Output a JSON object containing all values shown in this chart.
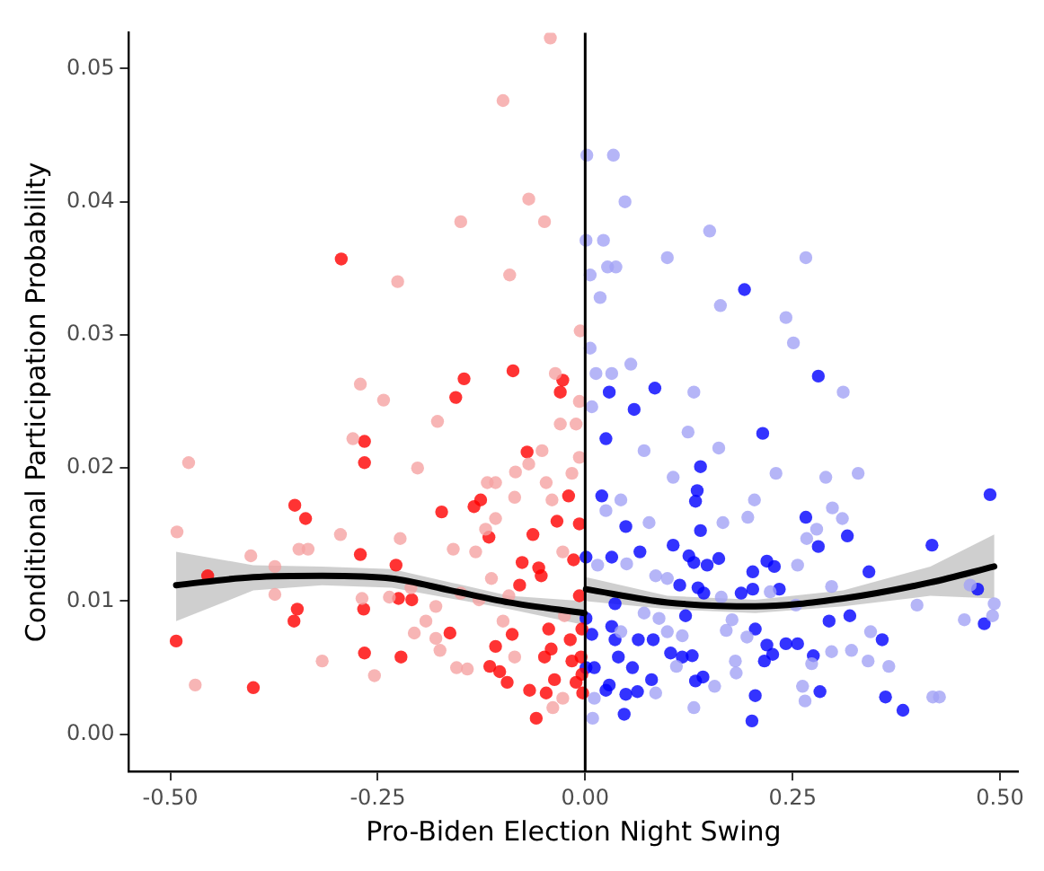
{
  "chart_data": {
    "type": "scatter",
    "xlabel": "Pro-Biden Election Night Swing",
    "ylabel": "Conditional Participation Probability",
    "xlim": [
      -0.55,
      0.522
    ],
    "ylim": [
      -0.0028,
      0.0527
    ],
    "xticks": [
      {
        "value": -0.5,
        "label": "-0.50"
      },
      {
        "value": -0.25,
        "label": "-0.25"
      },
      {
        "value": 0,
        "label": "0.00"
      },
      {
        "value": 0.25,
        "label": "0.25"
      },
      {
        "value": 0.5,
        "label": "0.50"
      }
    ],
    "yticks": [
      {
        "value": 0,
        "label": "0.00"
      },
      {
        "value": 0.01,
        "label": "0.01"
      },
      {
        "value": 0.02,
        "label": "0.02"
      },
      {
        "value": 0.03,
        "label": "0.03"
      },
      {
        "value": 0.04,
        "label": "0.04"
      },
      {
        "value": 0.05,
        "label": "0.05"
      }
    ],
    "marker": "circle",
    "legend": false,
    "grid": false,
    "ref_lines": [
      {
        "axis": "x",
        "value": 0,
        "color": "#000000"
      }
    ],
    "series": [
      {
        "color": "#f5a3a3",
        "x": [
          -0.099,
          -0.042,
          -0.068,
          -0.15,
          -0.049,
          -0.226,
          -0.091,
          -0.006,
          -0.271,
          -0.243,
          -0.036,
          -0.478,
          -0.492,
          -0.47,
          -0.403,
          -0.374,
          -0.374,
          -0.345,
          -0.334,
          -0.317,
          -0.295,
          -0.28,
          -0.269,
          -0.254,
          -0.223,
          -0.236,
          -0.202,
          -0.21,
          -0.178,
          -0.192,
          -0.206,
          -0.18,
          -0.175,
          -0.18,
          -0.159,
          -0.15,
          -0.155,
          -0.142,
          -0.132,
          -0.12,
          -0.108,
          -0.118,
          -0.108,
          -0.085,
          -0.084,
          -0.068,
          -0.052,
          -0.03,
          -0.047,
          -0.04,
          -0.016,
          -0.113,
          -0.128,
          -0.099,
          -0.039,
          -0.027,
          -0.025,
          -0.027,
          -0.007,
          -0.011,
          -0.007,
          -0.092,
          -0.085
        ],
        "values": [
          0.0476,
          0.0523,
          0.0402,
          0.0385,
          0.0385,
          0.034,
          0.0345,
          0.0303,
          0.0263,
          0.0251,
          0.0271,
          0.0204,
          0.0152,
          0.0037,
          0.0134,
          0.0126,
          0.0105,
          0.0139,
          0.0139,
          0.0055,
          0.015,
          0.0222,
          0.0102,
          0.0044,
          0.0147,
          0.0103,
          0.02,
          0.011,
          0.0235,
          0.0085,
          0.0076,
          0.0072,
          0.0063,
          0.0096,
          0.0139,
          0.0106,
          0.005,
          0.0049,
          0.0137,
          0.0154,
          0.0162,
          0.0189,
          0.0189,
          0.0178,
          0.0197,
          0.0203,
          0.0213,
          0.0233,
          0.0189,
          0.0176,
          0.0196,
          0.0117,
          0.0101,
          0.0085,
          0.002,
          0.0027,
          0.0089,
          0.0137,
          0.0208,
          0.0233,
          0.025,
          0.0104,
          0.0058
        ]
      },
      {
        "color": "#ff0000",
        "x": [
          -0.294,
          -0.146,
          -0.087,
          -0.027,
          -0.03,
          -0.156,
          -0.493,
          -0.455,
          -0.4,
          -0.35,
          -0.337,
          -0.347,
          -0.351,
          -0.266,
          -0.266,
          -0.271,
          -0.267,
          -0.266,
          -0.228,
          -0.225,
          -0.209,
          -0.222,
          -0.173,
          -0.163,
          -0.134,
          -0.126,
          -0.116,
          -0.07,
          -0.02,
          -0.034,
          -0.063,
          -0.076,
          -0.053,
          -0.079,
          -0.088,
          -0.108,
          -0.115,
          -0.103,
          -0.094,
          -0.067,
          -0.059,
          -0.044,
          -0.049,
          -0.041,
          -0.037,
          -0.047,
          -0.018,
          -0.016,
          -0.011,
          -0.007,
          -0.014,
          -0.007,
          -0.004,
          -0.005,
          -0.004,
          -0.003,
          -0.056
        ],
        "values": [
          0.0357,
          0.0267,
          0.0273,
          0.0266,
          0.0257,
          0.0253,
          0.007,
          0.0119,
          0.0035,
          0.0172,
          0.0162,
          0.0094,
          0.0085,
          0.022,
          0.0204,
          0.0135,
          0.0094,
          0.0061,
          0.0127,
          0.0102,
          0.0101,
          0.0058,
          0.0167,
          0.0076,
          0.0171,
          0.0176,
          0.0148,
          0.0212,
          0.0179,
          0.016,
          0.015,
          0.0129,
          0.0119,
          0.0112,
          0.0075,
          0.0066,
          0.0051,
          0.0047,
          0.0039,
          0.0033,
          0.0012,
          0.0079,
          0.0058,
          0.0064,
          0.0041,
          0.0031,
          0.0071,
          0.0055,
          0.0039,
          0.0104,
          0.0131,
          0.0158,
          0.0079,
          0.0058,
          0.0045,
          0.0031,
          0.0125
        ]
      },
      {
        "color": "#a3a3f5",
        "x": [
          0.034,
          0.002,
          0.048,
          0.15,
          0.022,
          0.001,
          0.099,
          0.266,
          0.006,
          0.027,
          0.037,
          0.018,
          0.163,
          0.242,
          0.251,
          0.055,
          0.013,
          0.032,
          0.131,
          0.311,
          0.006,
          0.008,
          0.124,
          0.161,
          0.071,
          0.106,
          0.23,
          0.29,
          0.329,
          0.043,
          0.204,
          0.025,
          0.077,
          0.166,
          0.298,
          0.279,
          0.31,
          0.196,
          0.267,
          0.256,
          0.05,
          0.015,
          0.085,
          0.099,
          0.223,
          0.164,
          0.297,
          0.4,
          0.464,
          0.493,
          0.491,
          0.457,
          0.254,
          0.177,
          0.17,
          0.195,
          0.297,
          0.321,
          0.344,
          0.341,
          0.366,
          0.273,
          0.262,
          0.265,
          0.419,
          0.427,
          0.181,
          0.182,
          0.156,
          0.131,
          0.11,
          0.011,
          0.009,
          0.085,
          0.043,
          0.099,
          0.117,
          0.071,
          0.089
        ],
        "values": [
          0.0435,
          0.0435,
          0.04,
          0.0378,
          0.0371,
          0.0371,
          0.0358,
          0.0358,
          0.0345,
          0.0351,
          0.0351,
          0.0328,
          0.0322,
          0.0313,
          0.0294,
          0.0278,
          0.0271,
          0.0271,
          0.0257,
          0.0257,
          0.029,
          0.0246,
          0.0227,
          0.0215,
          0.0213,
          0.0193,
          0.0196,
          0.0193,
          0.0196,
          0.0176,
          0.0176,
          0.0168,
          0.0159,
          0.0159,
          0.017,
          0.0154,
          0.0162,
          0.0163,
          0.0147,
          0.0127,
          0.0128,
          0.0127,
          0.0119,
          0.0117,
          0.0107,
          0.0103,
          0.0111,
          0.0097,
          0.0112,
          0.0098,
          0.0089,
          0.0086,
          0.0097,
          0.0086,
          0.0078,
          0.0073,
          0.0062,
          0.0063,
          0.0077,
          0.0055,
          0.0051,
          0.0053,
          0.0036,
          0.0025,
          0.0028,
          0.0028,
          0.0055,
          0.0046,
          0.0036,
          0.002,
          0.0051,
          0.0027,
          0.0012,
          0.0031,
          0.0077,
          0.0077,
          0.0074,
          0.0091,
          0.0087
        ]
      },
      {
        "color": "#0000ff",
        "x": [
          0.192,
          0.281,
          0.084,
          0.029,
          0.059,
          0.025,
          0.214,
          0.139,
          0.488,
          0.02,
          0.135,
          0.133,
          0.049,
          0.266,
          0.139,
          0.316,
          0.281,
          0.418,
          0.106,
          0.066,
          0.032,
          0.125,
          0.131,
          0.147,
          0.161,
          0.219,
          0.228,
          0.202,
          0.342,
          0.001,
          0.114,
          0.136,
          0.143,
          0.188,
          0.202,
          0.234,
          0.473,
          0.481,
          0.294,
          0.319,
          0.205,
          0.219,
          0.242,
          0.256,
          0.226,
          0.216,
          0.275,
          0.358,
          0.283,
          0.362,
          0.383,
          0.205,
          0.201,
          0.142,
          0.133,
          0.103,
          0.117,
          0.129,
          0.08,
          0.063,
          0.049,
          0.029,
          0.025,
          0.047,
          0.04,
          0.057,
          0.011,
          0.036,
          0.064,
          0.082,
          0.008,
          0.032,
          0.036,
          0.121,
          0.001,
          0.001
        ],
        "values": [
          0.0334,
          0.0269,
          0.026,
          0.0257,
          0.0244,
          0.0222,
          0.0226,
          0.0201,
          0.018,
          0.0179,
          0.0183,
          0.0175,
          0.0156,
          0.0163,
          0.0153,
          0.0149,
          0.0141,
          0.0142,
          0.0142,
          0.0137,
          0.0133,
          0.0134,
          0.0129,
          0.0127,
          0.0132,
          0.013,
          0.0126,
          0.0122,
          0.0122,
          0.0133,
          0.0112,
          0.011,
          0.0106,
          0.0106,
          0.0109,
          0.0109,
          0.0109,
          0.0083,
          0.0085,
          0.0089,
          0.0079,
          0.0067,
          0.0068,
          0.0068,
          0.006,
          0.0055,
          0.0059,
          0.0071,
          0.0032,
          0.0028,
          0.0018,
          0.0029,
          0.001,
          0.0043,
          0.004,
          0.0061,
          0.0058,
          0.0059,
          0.0041,
          0.0032,
          0.003,
          0.0037,
          0.0033,
          0.0015,
          0.0058,
          0.005,
          0.005,
          0.0071,
          0.0071,
          0.0071,
          0.0075,
          0.0081,
          0.0098,
          0.0089,
          0.0087,
          0.005
        ]
      },
      {
        "type": "line",
        "marker": "none",
        "color": "#000000",
        "x": [
          -0.493,
          -0.4,
          -0.317,
          -0.233,
          -0.162,
          -0.092,
          -0.001
        ],
        "values": [
          0.0112,
          0.0118,
          0.0119,
          0.0117,
          0.0108,
          0.0099,
          0.0091
        ],
        "lower": [
          0.0085,
          0.0108,
          0.0112,
          0.011,
          0.0102,
          0.0094,
          0.0082
        ],
        "upper": [
          0.0137,
          0.0127,
          0.0126,
          0.0124,
          0.0114,
          0.0104,
          0.01
        ]
      },
      {
        "type": "line",
        "marker": "none",
        "color": "#000000",
        "x": [
          0.001,
          0.099,
          0.205,
          0.311,
          0.416,
          0.493
        ],
        "values": [
          0.0109,
          0.0099,
          0.0096,
          0.0102,
          0.0114,
          0.0126
        ],
        "lower": [
          0.01,
          0.0094,
          0.0091,
          0.0096,
          0.0104,
          0.0102
        ],
        "upper": [
          0.0118,
          0.0104,
          0.0101,
          0.0108,
          0.0126,
          0.015
        ]
      }
    ]
  }
}
